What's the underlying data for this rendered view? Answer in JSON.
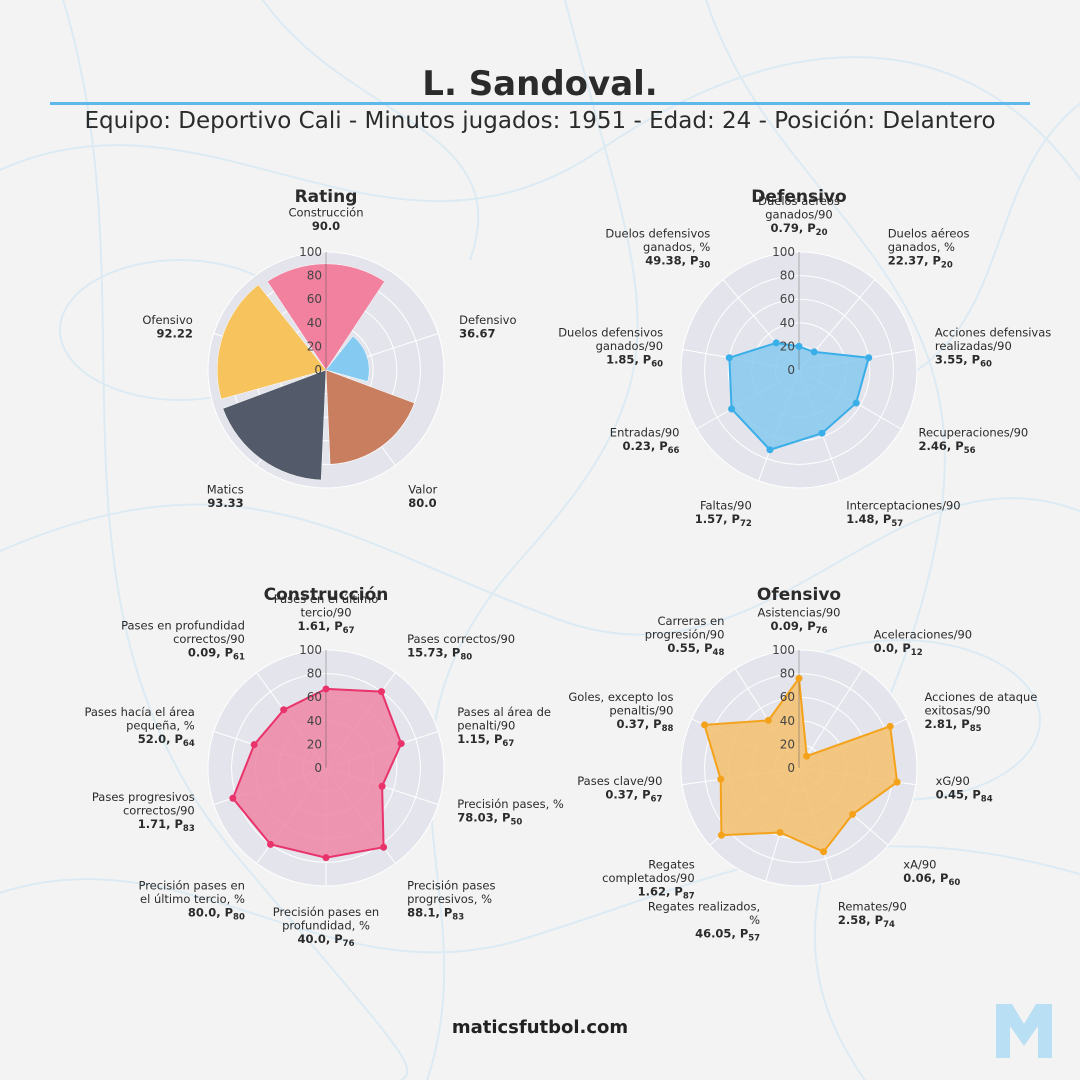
{
  "header": {
    "title": "L. Sandoval.",
    "subtitle": "Equipo: Deportivo Cali - Minutos jugados: 1951 - Edad: 24 - Posición: Delantero"
  },
  "footer": {
    "site": "maticsfutbol.com"
  },
  "colors": {
    "accent": "#5eb8ea",
    "polar_bg": "#e3e4ec",
    "defensivo": "#3aaee8",
    "construccion": "#e8336b",
    "ofensivo": "#f5a21b"
  },
  "chart_data": [
    {
      "type": "bar",
      "subtype": "polar-bar",
      "title": "Rating",
      "radial_range": [
        0,
        100
      ],
      "radial_ticks": [
        "0",
        "20",
        "40",
        "60",
        "80",
        "100"
      ],
      "categories": [
        {
          "label": "Construcción",
          "value": "90.0",
          "v": 90.0,
          "color": "#f2819f"
        },
        {
          "label": "Defensivo",
          "value": "36.67",
          "v": 36.67,
          "color": "#85cbf1"
        },
        {
          "label": "Valor",
          "value": "80.0",
          "v": 80.0,
          "color": "#c97f5f"
        },
        {
          "label": "Matics",
          "value": "93.33",
          "v": 93.33,
          "color": "#535b6a"
        },
        {
          "label": "Ofensivo",
          "value": "92.22",
          "v": 92.22,
          "color": "#f6c35c"
        }
      ]
    },
    {
      "type": "radar",
      "title": "Defensivo",
      "color": "#3aaee8",
      "fill": "#86c9ee",
      "radial_range": [
        0,
        100
      ],
      "radial_ticks": [
        "0",
        "20",
        "40",
        "60",
        "80",
        "100"
      ],
      "axes": [
        {
          "label": [
            "Duelos aéreos",
            "ganados/90"
          ],
          "value": "0.79",
          "pct": "20",
          "v": 20
        },
        {
          "label": [
            "Duelos aéreos",
            "ganados, %"
          ],
          "value": "22.37",
          "pct": "20",
          "v": 20
        },
        {
          "label": [
            "Acciones defensivas",
            "realizadas/90"
          ],
          "value": "3.55",
          "pct": "60",
          "v": 60
        },
        {
          "label": [
            "Recuperaciones/90"
          ],
          "value": "2.46",
          "pct": "56",
          "v": 56
        },
        {
          "label": [
            "Interceptaciones/90"
          ],
          "value": "1.48",
          "pct": "57",
          "v": 57
        },
        {
          "label": [
            "Faltas/90"
          ],
          "value": "1.57",
          "pct": "72",
          "v": 72
        },
        {
          "label": [
            "Entradas/90"
          ],
          "value": "0.23",
          "pct": "66",
          "v": 66
        },
        {
          "label": [
            "Duelos defensivos",
            "ganados/90"
          ],
          "value": "1.85",
          "pct": "60",
          "v": 60
        },
        {
          "label": [
            "Duelos defensivos",
            "ganados, %"
          ],
          "value": "49.38",
          "pct": "30",
          "v": 30
        }
      ]
    },
    {
      "type": "radar",
      "title": "Construcción",
      "color": "#e8336b",
      "fill": "#ee86a6",
      "radial_range": [
        0,
        100
      ],
      "radial_ticks": [
        "0",
        "20",
        "40",
        "60",
        "80",
        "100"
      ],
      "axes": [
        {
          "label": [
            "Pases en el último",
            "tercio/90"
          ],
          "value": "1.61",
          "pct": "67",
          "v": 67
        },
        {
          "label": [
            "Pases correctos/90"
          ],
          "value": "15.73",
          "pct": "80",
          "v": 80
        },
        {
          "label": [
            "Pases al área de",
            "penalti/90"
          ],
          "value": "1.15",
          "pct": "67",
          "v": 67
        },
        {
          "label": [
            "Precisión pases, %"
          ],
          "value": "78.03",
          "pct": "50",
          "v": 50
        },
        {
          "label": [
            "Precisión pases",
            "progresivos, %"
          ],
          "value": "88.1",
          "pct": "83",
          "v": 83
        },
        {
          "label": [
            "Precisión pases en",
            "profundidad, %"
          ],
          "value": "40.0",
          "pct": "76",
          "v": 76
        },
        {
          "label": [
            "Precisión pases en",
            "el último tercio, %"
          ],
          "value": "80.0",
          "pct": "80",
          "v": 80
        },
        {
          "label": [
            "Pases progresivos",
            "correctos/90"
          ],
          "value": "1.71",
          "pct": "83",
          "v": 83
        },
        {
          "label": [
            "Pases hacía el área",
            "pequeña, %"
          ],
          "value": "52.0",
          "pct": "64",
          "v": 64
        },
        {
          "label": [
            "Pases en profundidad",
            "correctos/90"
          ],
          "value": "0.09",
          "pct": "61",
          "v": 61
        }
      ]
    },
    {
      "type": "radar",
      "title": "Ofensivo",
      "color": "#f5a21b",
      "fill": "#f4c06d",
      "radial_range": [
        0,
        100
      ],
      "radial_ticks": [
        "0",
        "20",
        "40",
        "60",
        "80",
        "100"
      ],
      "axes": [
        {
          "label": [
            "Asistencias/90"
          ],
          "value": "0.09",
          "pct": "76",
          "v": 76
        },
        {
          "label": [
            "Aceleraciones/90"
          ],
          "value": "0.0",
          "pct": "12",
          "v": 12
        },
        {
          "label": [
            "Acciones de ataque",
            "exitosas/90"
          ],
          "value": "2.81",
          "pct": "85",
          "v": 85
        },
        {
          "label": [
            "xG/90"
          ],
          "value": "0.45",
          "pct": "84",
          "v": 84
        },
        {
          "label": [
            "xA/90"
          ],
          "value": "0.06",
          "pct": "60",
          "v": 60
        },
        {
          "label": [
            "Remates/90"
          ],
          "value": "2.58",
          "pct": "74",
          "v": 74
        },
        {
          "label": [
            "Regates realizados,",
            "%"
          ],
          "value": "46.05",
          "pct": "57",
          "v": 57
        },
        {
          "label": [
            "Regates",
            "completados/90"
          ],
          "value": "1.62",
          "pct": "87",
          "v": 87
        },
        {
          "label": [
            "Pases clave/90"
          ],
          "value": "0.37",
          "pct": "67",
          "v": 67
        },
        {
          "label": [
            "Goles, excepto los",
            "penaltis/90"
          ],
          "value": "0.37",
          "pct": "88",
          "v": 88
        },
        {
          "label": [
            "Carreras en",
            "progresión/90"
          ],
          "value": "0.55",
          "pct": "48",
          "v": 48
        }
      ]
    }
  ]
}
